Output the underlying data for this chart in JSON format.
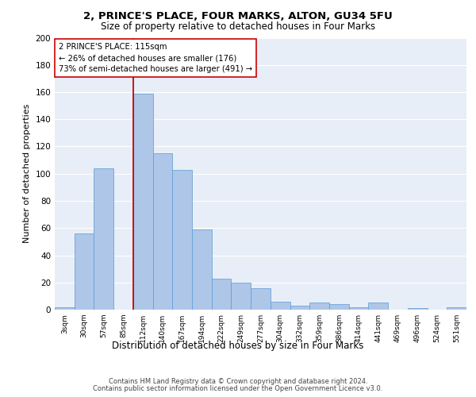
{
  "title1": "2, PRINCE'S PLACE, FOUR MARKS, ALTON, GU34 5FU",
  "title2": "Size of property relative to detached houses in Four Marks",
  "xlabel": "Distribution of detached houses by size in Four Marks",
  "ylabel": "Number of detached properties",
  "bar_labels": [
    "3sqm",
    "30sqm",
    "57sqm",
    "85sqm",
    "112sqm",
    "140sqm",
    "167sqm",
    "194sqm",
    "222sqm",
    "249sqm",
    "277sqm",
    "304sqm",
    "332sqm",
    "359sqm",
    "386sqm",
    "414sqm",
    "441sqm",
    "469sqm",
    "496sqm",
    "524sqm",
    "551sqm"
  ],
  "bar_values": [
    2,
    56,
    104,
    0,
    159,
    115,
    103,
    59,
    23,
    20,
    16,
    6,
    3,
    5,
    4,
    2,
    5,
    0,
    1,
    0,
    2
  ],
  "bar_color": "#aec6e8",
  "bar_edge_color": "#5b9bd5",
  "background_color": "#e8eef7",
  "grid_color": "#ffffff",
  "vline_x_index": 3.5,
  "annotation_text": "2 PRINCE'S PLACE: 115sqm\n← 26% of detached houses are smaller (176)\n73% of semi-detached houses are larger (491) →",
  "annotation_box_color": "#ffffff",
  "annotation_box_edge_color": "#cc0000",
  "vline_color": "#cc0000",
  "footer1": "Contains HM Land Registry data © Crown copyright and database right 2024.",
  "footer2": "Contains public sector information licensed under the Open Government Licence v3.0.",
  "ylim": [
    0,
    200
  ],
  "yticks": [
    0,
    20,
    40,
    60,
    80,
    100,
    120,
    140,
    160,
    180,
    200
  ]
}
